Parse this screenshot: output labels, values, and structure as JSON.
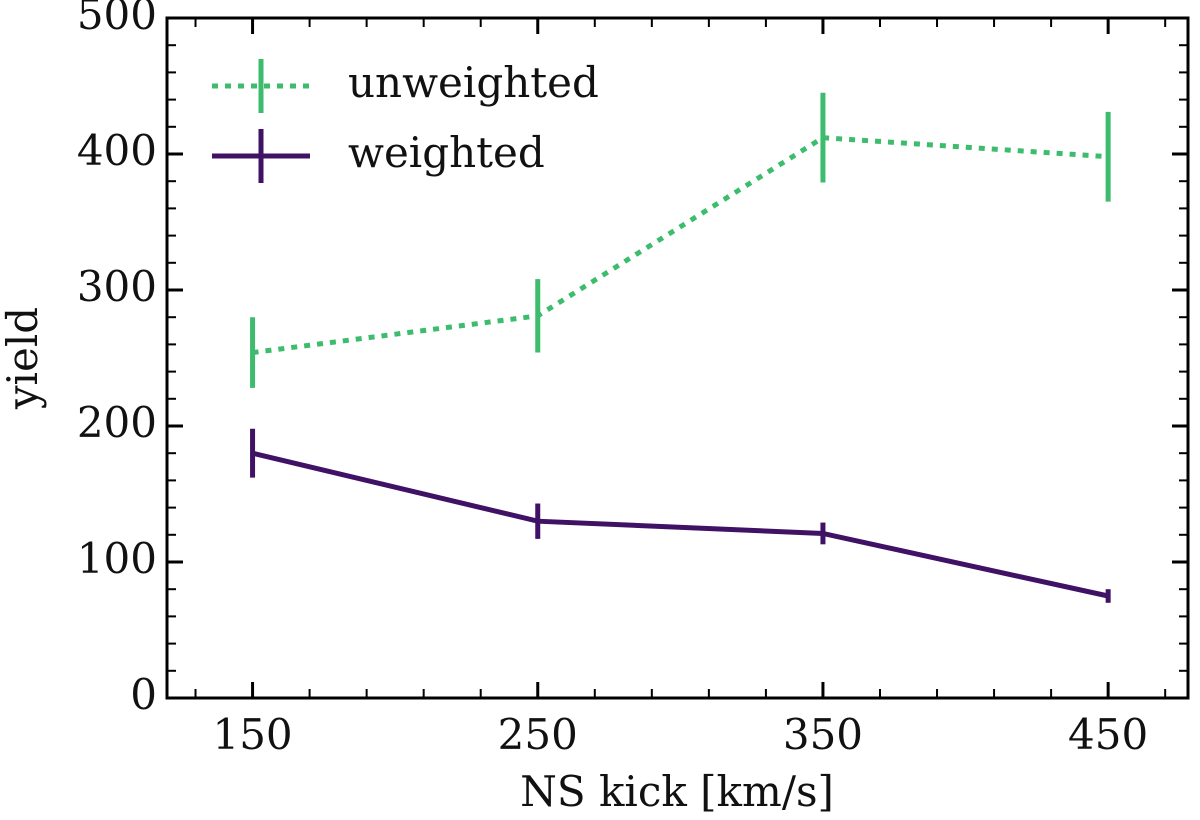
{
  "chart_data": {
    "type": "errorbar-line",
    "x_label": "NS kick [km/s]",
    "y_label": "yield",
    "x": [
      150,
      250,
      350,
      450
    ],
    "series": [
      {
        "name": "unweighted",
        "color": "#3dbc6e",
        "linestyle": "dotted",
        "values": [
          254,
          281,
          412,
          398
        ],
        "errors": [
          26,
          27,
          33,
          33
        ]
      },
      {
        "name": "weighted",
        "color": "#3f1266",
        "linestyle": "solid",
        "values": [
          180,
          130,
          121,
          75
        ],
        "errors": [
          18,
          13,
          8,
          5
        ]
      }
    ],
    "xlim": [
      120,
      478
    ],
    "ylim": [
      0,
      500
    ],
    "xticks": [
      150,
      250,
      350,
      450
    ],
    "yticks": [
      0,
      100,
      200,
      300,
      400,
      500
    ],
    "xticks_minor": [
      130,
      170,
      190,
      210,
      230,
      270,
      290,
      310,
      330,
      370,
      390,
      410,
      430,
      470
    ],
    "yticks_minor": [
      20,
      40,
      60,
      80,
      120,
      140,
      160,
      180,
      220,
      240,
      260,
      280,
      320,
      340,
      360,
      380,
      420,
      440,
      460,
      480
    ],
    "legend": "upper left"
  }
}
